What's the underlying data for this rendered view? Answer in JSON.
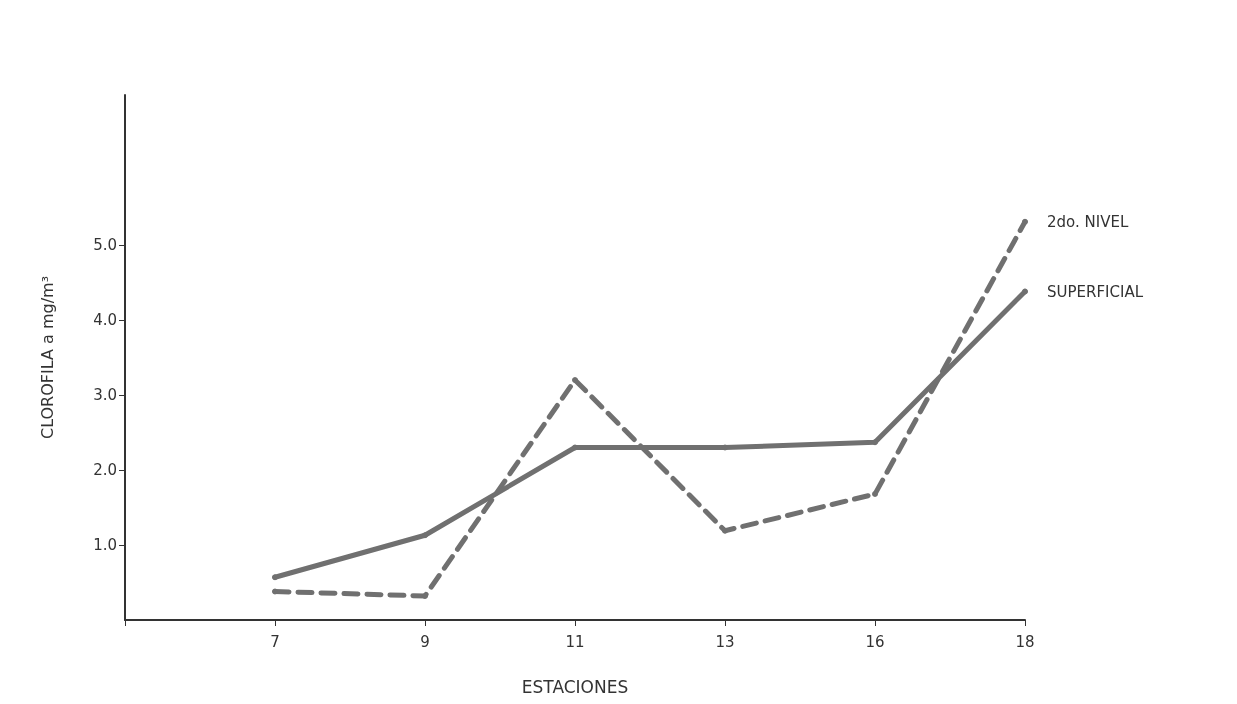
{
  "chart_data": {
    "type": "line",
    "xlabel": "ESTACIONES",
    "ylabel": "CLOROFILA a mg/m³",
    "categories": [
      "7",
      "9",
      "11",
      "13",
      "16",
      "18"
    ],
    "ylim": [
      0,
      7
    ],
    "yticks": [
      {
        "value": 1,
        "label": "1.0"
      },
      {
        "value": 2,
        "label": "2.0"
      },
      {
        "value": 3,
        "label": "3.0"
      },
      {
        "value": 4,
        "label": "4.0"
      },
      {
        "value": 5,
        "label": "5.0"
      }
    ],
    "grid": false,
    "legend": false,
    "marker": "circle",
    "series": [
      {
        "name": "2do. NIVEL",
        "color": "#707070",
        "line_style": "dashed",
        "values": [
          0.38,
          0.32,
          3.2,
          1.19,
          1.68,
          5.31
        ]
      },
      {
        "name": "SUPERFICIAL",
        "color": "#707070",
        "line_style": "solid",
        "values": [
          0.57,
          1.13,
          2.3,
          2.3,
          2.37,
          4.38
        ]
      }
    ]
  }
}
